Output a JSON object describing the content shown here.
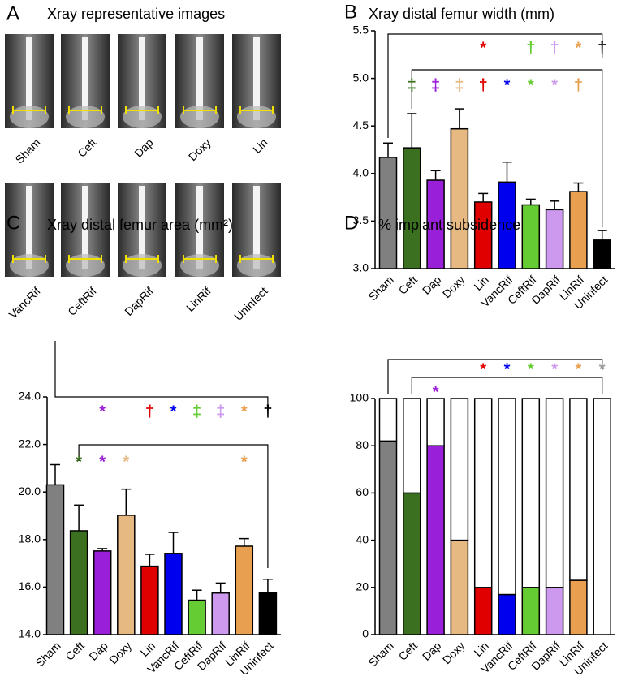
{
  "panel_a": {
    "label": "A",
    "title": "Xray representative images",
    "images": [
      "Sham",
      "Ceft",
      "Dap",
      "Doxy",
      "Lin",
      "VancRif",
      "CeftRif",
      "DapRif",
      "LinRif",
      "Uninfect"
    ]
  },
  "chart_data": [
    {
      "panel": "B",
      "type": "bar",
      "title": "Xray distal femur width (mm)",
      "categories": [
        "Sham",
        "Ceft",
        "Dap",
        "Doxy",
        "Lin",
        "VancRif",
        "CeftRif",
        "DapRif",
        "LinRif",
        "Uninfect"
      ],
      "colors": [
        "#808080",
        "#3a7020",
        "#9a1fd8",
        "#e6b882",
        "#e00000",
        "#0000ee",
        "#66cc33",
        "#cc99ee",
        "#e8a050",
        "#000000"
      ],
      "values": [
        4.17,
        4.27,
        3.93,
        4.47,
        3.7,
        3.91,
        3.67,
        3.62,
        3.81,
        3.3
      ],
      "errors": [
        0.15,
        0.36,
        0.1,
        0.21,
        0.09,
        0.21,
        0.06,
        0.09,
        0.09,
        0.1
      ],
      "ylim": [
        3,
        5.5
      ],
      "yticks": [
        {
          "value": 3,
          "label": "3.0"
        },
        3.5,
        {
          "value": 4,
          "label": "4.0"
        },
        4.5,
        {
          "value": 5,
          "label": "5.0"
        },
        5.5
      ],
      "markers": [
        {
          "symbols": [
            null,
            null,
            null,
            null,
            "*",
            null,
            "†",
            "†",
            "*",
            "†"
          ],
          "colors": [
            null,
            null,
            null,
            null,
            "#e00000",
            null,
            "#66cc33",
            "#cc99ee",
            "#e8a050",
            "#000000"
          ]
        },
        {
          "symbols": [
            null,
            "‡",
            "‡",
            "‡",
            "†",
            "*",
            "*",
            "*",
            "†",
            null
          ],
          "colors": [
            null,
            "#3a7020",
            "#9a1fd8",
            "#e6b882",
            "#e00000",
            "#0000ee",
            "#66cc33",
            "#cc99ee",
            "#e8a050",
            null
          ]
        }
      ]
    },
    {
      "panel": "C",
      "type": "bar",
      "title": "Xray distal femur area (mm²)",
      "categories": [
        "Sham",
        "Ceft",
        "Dap",
        "Doxy",
        "Lin",
        "VancRif",
        "CeftRif",
        "DapRif",
        "LinRif",
        "Uninfect"
      ],
      "colors": [
        "#808080",
        "#3a7020",
        "#9a1fd8",
        "#e6b882",
        "#e00000",
        "#0000ee",
        "#66cc33",
        "#cc99ee",
        "#e8a050",
        "#000000"
      ],
      "values": [
        20.3,
        18.37,
        17.52,
        19.02,
        16.88,
        17.42,
        15.45,
        15.75,
        17.72,
        15.78
      ],
      "errors": [
        0.85,
        1.08,
        0.1,
        1.1,
        0.5,
        0.88,
        0.42,
        0.42,
        0.32,
        0.55
      ],
      "ylim": [
        14,
        24
      ],
      "yticks": [
        {
          "value": 14,
          "label": "14.0"
        },
        {
          "value": 16,
          "label": "16.0"
        },
        {
          "value": 18,
          "label": "18.0"
        },
        {
          "value": 20,
          "label": "20.0"
        },
        {
          "value": 22,
          "label": "22.0"
        },
        {
          "value": 24,
          "label": "24.0"
        }
      ],
      "markers": [
        {
          "symbols": [
            null,
            null,
            "*",
            null,
            "†",
            "*",
            "‡",
            "‡",
            "*",
            "†"
          ],
          "colors": [
            null,
            null,
            "#9a1fd8",
            null,
            "#e00000",
            "#0000ee",
            "#66cc33",
            "#cc99ee",
            "#e8a050",
            "#000000"
          ]
        },
        {
          "symbols": [
            null,
            "*",
            "*",
            "*",
            null,
            null,
            null,
            null,
            "*",
            null
          ],
          "colors": [
            null,
            "#3a7020",
            "#9a1fd8",
            "#e6b882",
            null,
            null,
            null,
            null,
            "#e8a050",
            null
          ]
        }
      ]
    },
    {
      "panel": "D",
      "type": "stacked_bar",
      "title": "% implant subsidence",
      "categories": [
        "Sham",
        "Ceft",
        "Dap",
        "Doxy",
        "Lin",
        "VancRif",
        "CeftRif",
        "DapRif",
        "LinRif",
        "Uninfect"
      ],
      "series": [
        {
          "colors": [
            "#808080",
            "#3a7020",
            "#9a1fd8",
            "#e6b882",
            "#e00000",
            "#0000ee",
            "#66cc33",
            "#cc99ee",
            "#e8a050",
            "#000000"
          ],
          "values": [
            82,
            60,
            80,
            40,
            20,
            17,
            20,
            20,
            23,
            0
          ]
        },
        {
          "color": "#ffffff",
          "values": [
            18,
            40,
            20,
            60,
            80,
            83,
            80,
            80,
            77,
            100
          ]
        }
      ],
      "ylim": [
        0,
        100
      ],
      "yticks": [
        0,
        20,
        40,
        60,
        80,
        100
      ],
      "markers": [
        {
          "symbols": [
            null,
            null,
            null,
            null,
            "*",
            "*",
            "*",
            "*",
            "*",
            "*"
          ],
          "colors": [
            null,
            null,
            null,
            null,
            "#e00000",
            "#0000ee",
            "#66cc33",
            "#cc99ee",
            "#e8a050",
            "#999999"
          ]
        },
        {
          "symbols": [
            null,
            null,
            "*",
            null,
            null,
            null,
            null,
            null,
            null,
            null
          ],
          "colors": [
            null,
            null,
            "#9a1fd8",
            null,
            null,
            null,
            null,
            null,
            null,
            null
          ]
        }
      ]
    }
  ]
}
